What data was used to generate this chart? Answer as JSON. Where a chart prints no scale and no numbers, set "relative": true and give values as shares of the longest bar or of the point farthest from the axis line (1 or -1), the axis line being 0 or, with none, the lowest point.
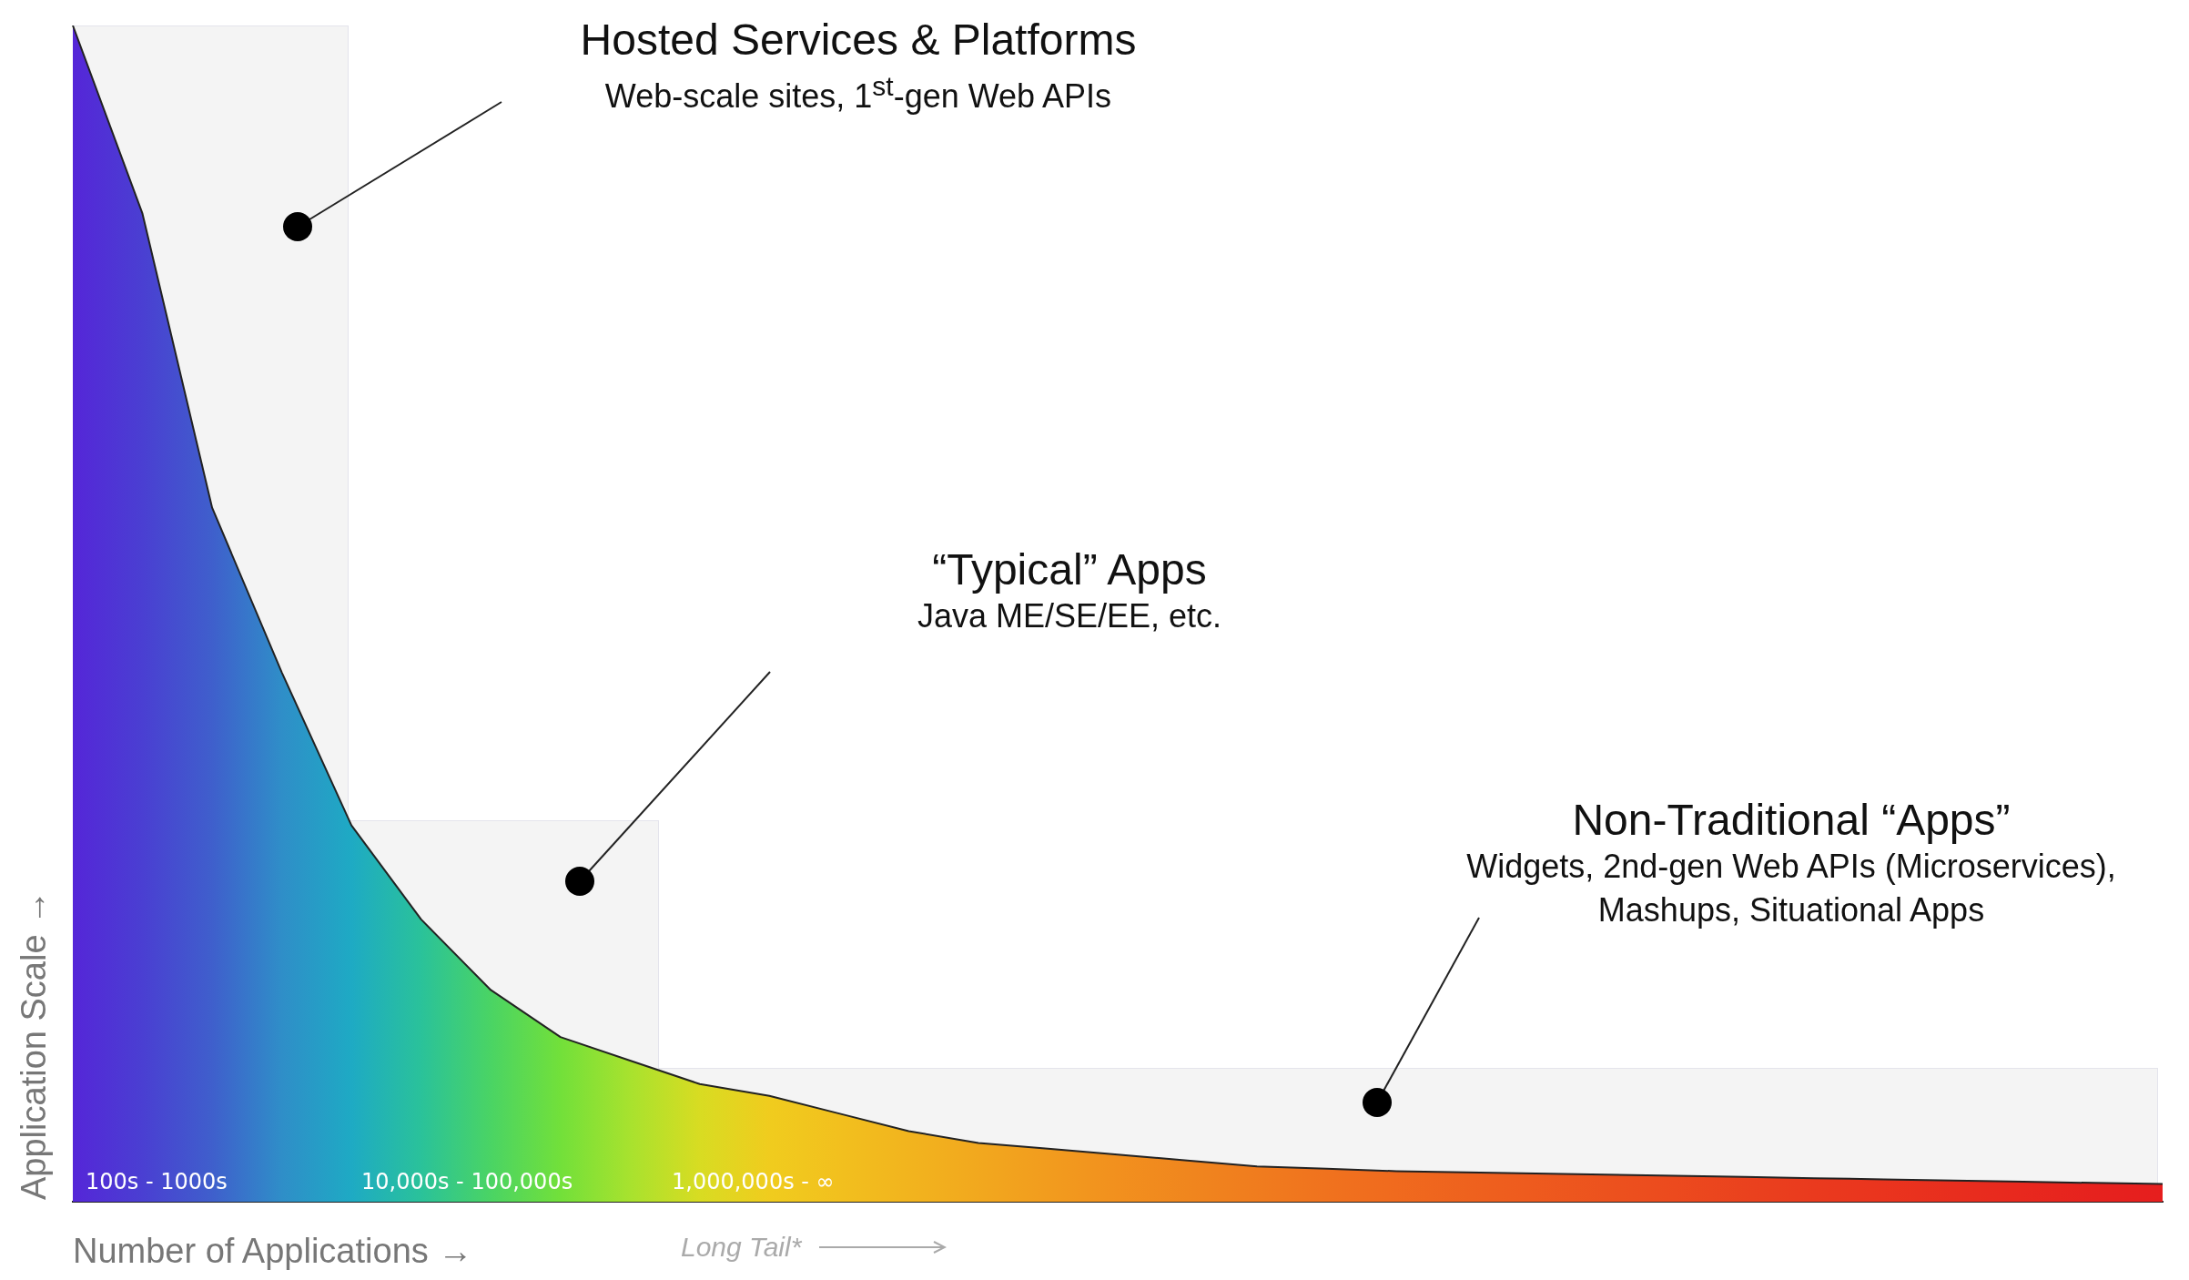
{
  "chart_data": {
    "type": "area",
    "relative": true,
    "xlabel": "Number of Applications →",
    "ylabel": "Application Scale →",
    "categories": [
      null,
      null,
      null,
      null,
      null,
      null,
      null,
      null,
      null,
      null,
      null,
      null,
      null,
      null,
      null,
      null,
      null,
      null,
      null,
      null,
      null,
      null,
      null,
      null,
      null,
      null,
      null,
      null,
      null,
      null,
      null
    ],
    "series": [
      {
        "color": "#222222",
        "values": [
          1,
          0.84,
          0.59,
          0.45,
          0.32,
          0.24,
          0.18,
          0.14,
          0.12,
          0.1,
          0.09,
          0.075,
          0.06,
          0.05,
          0.045,
          0.04,
          0.035,
          0.03,
          0.028,
          0.026,
          0.025,
          0.024,
          0.023,
          0.022,
          0.021,
          0.02,
          0.019,
          0.018,
          0.017,
          0.016,
          0.015
        ],
        "colors": [
          "#5526d8",
          "#4a3fd2",
          "#3f5fcc",
          "#2f8ec8",
          "#1eaac4",
          "#2ac29a",
          "#4ad464",
          "#72e03a",
          "#a8e22e",
          "#d8dc22",
          "#f0cc1e",
          "#f2c01e",
          "#f2b41e",
          "#f2a81e",
          "#f29c1e",
          "#f2901e",
          "#f0861e",
          "#f07c1e",
          "#f0721e",
          "#f06a1e",
          "#ee621e",
          "#ee5a1e",
          "#ec521e",
          "#ec4a1e",
          "#ea421e",
          "#ea3a1e",
          "#ea341e",
          "#e82e1e",
          "#e8281e",
          "#e6221e",
          "#e61e1e"
        ]
      }
    ],
    "annotations": [
      "100s - 1000s",
      "10,000s - 100,000s",
      "1,000,000s - ∞",
      "Hosted Services & Platforms\nWeb-scale sites, 1$^{st}$-gen Web APIs",
      "“Typical” Apps\nJava ME/SE/EE, etc.",
      "Non-Traditional “Apps”\nWidgets, 2nd-gen Web APIs (Microservices),\nMashups, Situational Apps",
      "Long Tail*"
    ]
  }
}
